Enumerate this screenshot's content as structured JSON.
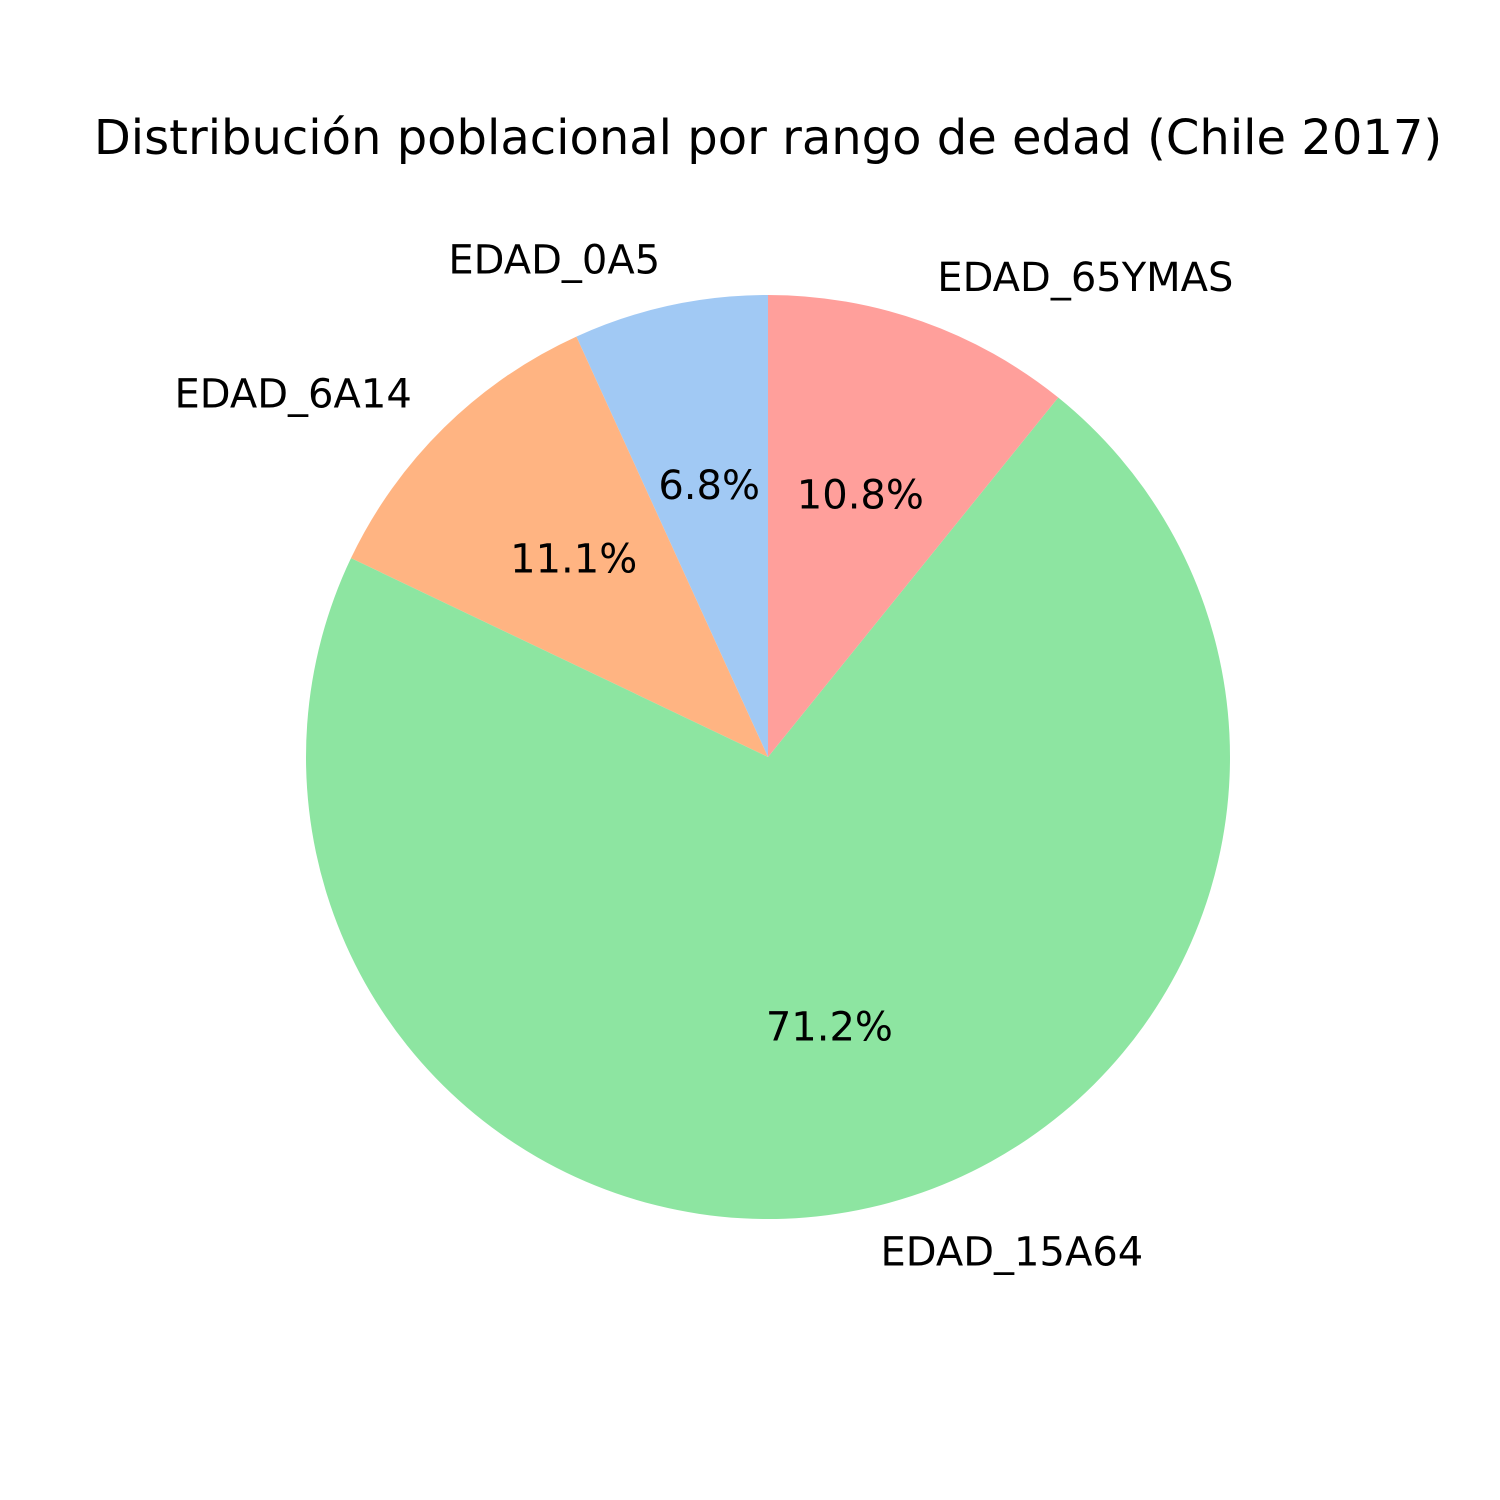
{
  "chart_data": {
    "type": "pie",
    "title": "Distribución poblacional por rango de edad (Chile 2017)",
    "start_angle_deg": 90,
    "direction": "counterclockwise",
    "slices": [
      {
        "label": "EDAD_0A5",
        "value": 6.8,
        "pct_label": "6.8%",
        "color": "#a1c9f4"
      },
      {
        "label": "EDAD_6A14",
        "value": 11.1,
        "pct_label": "11.1%",
        "color": "#ffb482"
      },
      {
        "label": "EDAD_15A64",
        "value": 71.2,
        "pct_label": "71.2%",
        "color": "#8de5a1"
      },
      {
        "label": "EDAD_65YMAS",
        "value": 10.8,
        "pct_label": "10.8%",
        "color": "#ff9f9b"
      }
    ],
    "legend": false
  }
}
